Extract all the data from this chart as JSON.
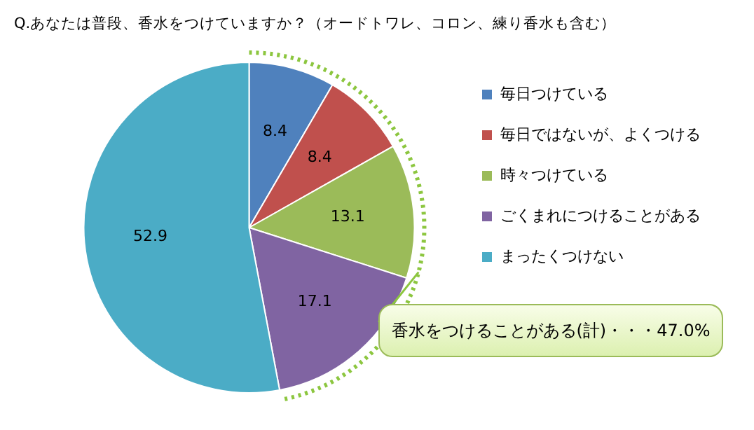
{
  "chart_data": {
    "type": "pie",
    "title": "Q.あなたは普段、香水をつけていますか？（オードトワレ、コロン、練り香水も含む）",
    "categories": [
      "毎日つけている",
      "毎日ではないが、よくつける",
      "時々つけている",
      "ごくまれにつけることがある",
      "まったくつけない"
    ],
    "values": [
      8.4,
      8.4,
      13.1,
      17.1,
      52.9
    ],
    "colors": [
      "#4f81bd",
      "#c0504d",
      "#9bbb59",
      "#8064a2",
      "#4bacc6"
    ],
    "data_labels": true,
    "legend": "right",
    "annotations": [
      "香水をつけることがある(計)・・・47.0%"
    ]
  }
}
